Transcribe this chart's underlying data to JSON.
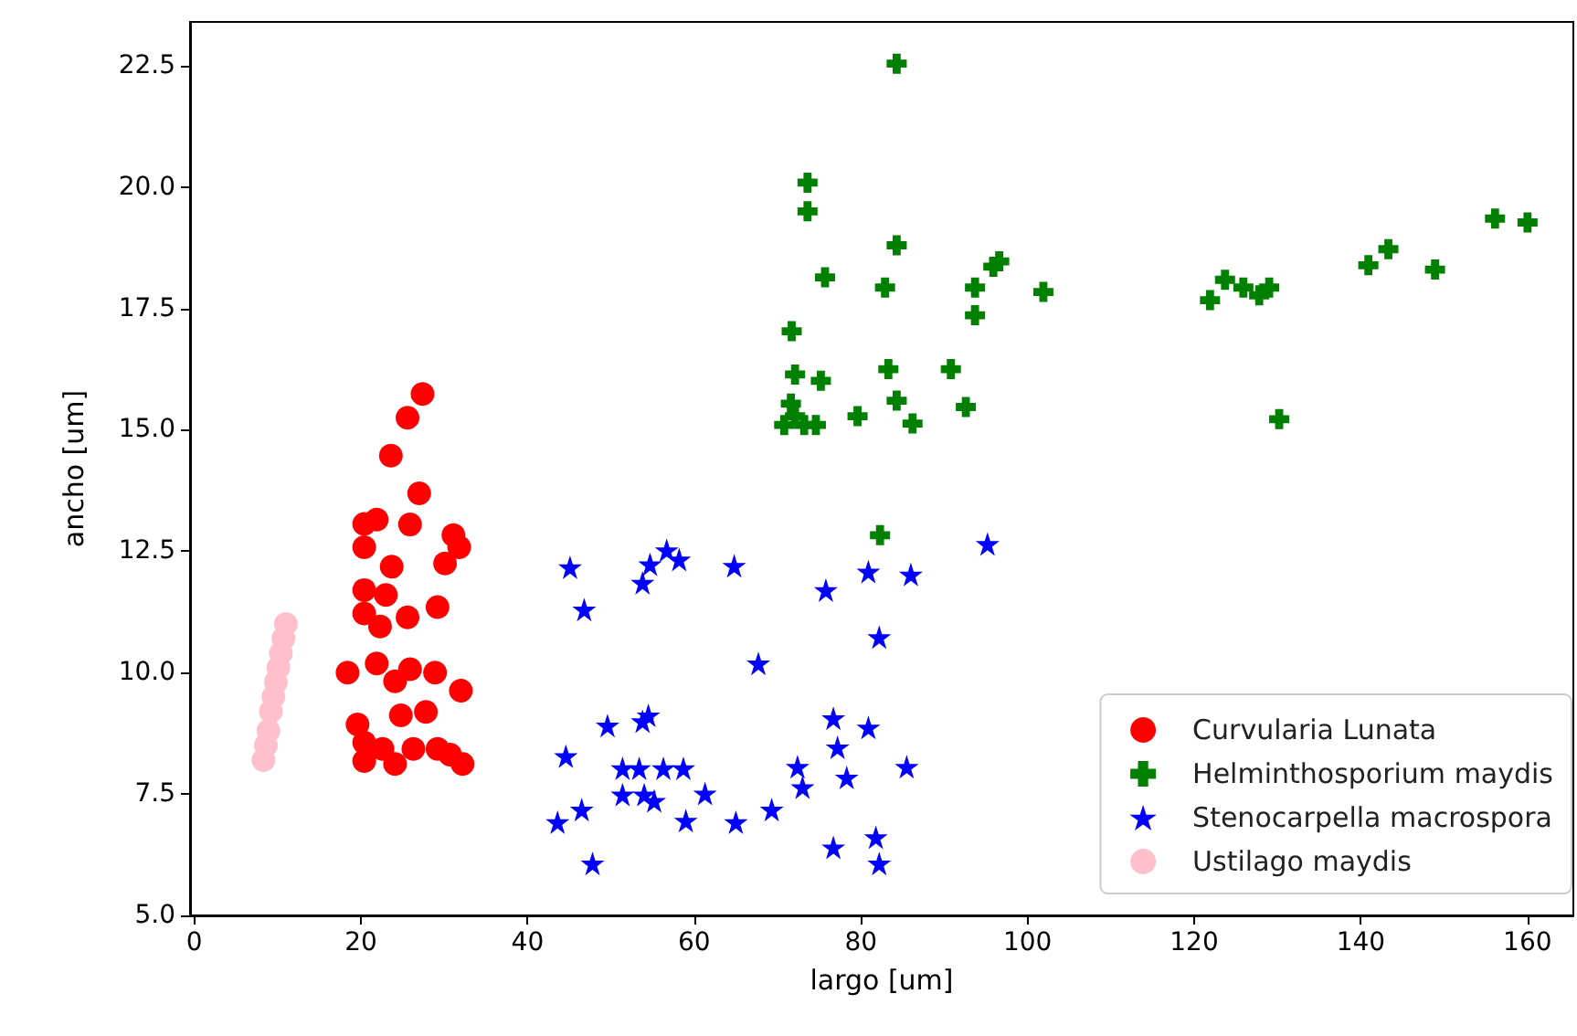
{
  "chart_data": {
    "type": "scatter",
    "xlabel": "largo [um]",
    "ylabel": "ancho [um]",
    "xlim": [
      -0.5,
      165.5
    ],
    "xticks": [
      0,
      20,
      40,
      60,
      80,
      100,
      120,
      140,
      160
    ],
    "ylim": [
      5,
      23.4
    ],
    "yticks": [
      {
        "value": 5,
        "label": "5.0"
      },
      {
        "value": 7.5,
        "label": "7.5"
      },
      {
        "value": 10,
        "label": "10.0"
      },
      {
        "value": 12.5,
        "label": "12.5"
      },
      {
        "value": 15,
        "label": "15.0"
      },
      {
        "value": 17.5,
        "label": "17.5"
      },
      {
        "value": 20,
        "label": "20.0"
      },
      {
        "value": 22.5,
        "label": "22.5"
      }
    ],
    "grid": false,
    "legend": "bottom right",
    "series": [
      {
        "name": "Curvularia Lunata",
        "color": "#ff0000",
        "marker": "circle",
        "x": [
          27.4,
          25.6,
          23.6,
          27.0,
          20.4,
          21.9,
          25.9,
          31.1,
          31.8,
          20.4,
          23.7,
          30.1,
          20.4,
          23.0,
          20.4,
          22.3,
          25.6,
          29.2,
          18.4,
          21.9,
          25.9,
          28.9,
          32.0,
          24.1,
          24.8,
          27.8,
          19.6,
          20.4,
          20.4,
          24.1,
          26.3,
          29.2,
          30.7,
          32.2,
          22.6
        ],
        "values": [
          15.74,
          15.25,
          14.47,
          13.69,
          13.06,
          13.15,
          13.05,
          12.83,
          12.58,
          12.58,
          12.18,
          12.25,
          11.7,
          11.6,
          11.22,
          10.95,
          11.14,
          11.35,
          10.0,
          10.19,
          10.07,
          10.0,
          9.63,
          9.82,
          9.12,
          9.19,
          8.93,
          8.56,
          8.18,
          8.12,
          8.43,
          8.43,
          8.31,
          8.12,
          8.43
        ]
      },
      {
        "name": "Helminthosporium maydis",
        "color": "#008000",
        "marker": "cross",
        "x": [
          84.3,
          73.6,
          73.6,
          84.3,
          76.1,
          75.7,
          82.9,
          93.7,
          95.9,
          96.6,
          101.9,
          93.7,
          71.7,
          72.1,
          75.2,
          83.3,
          90.8,
          71.6,
          72.5,
          84.3,
          92.6,
          79.6,
          86.2,
          70.8,
          73.2,
          74.6,
          72.1,
          82.3,
          121.9,
          123.7,
          125.9,
          127.8,
          129.0,
          130.2,
          140.9,
          143.3,
          148.9,
          156.1,
          160.0
        ],
        "values": [
          22.54,
          20.09,
          19.5,
          18.8,
          null,
          18.14,
          17.93,
          17.93,
          18.36,
          18.47,
          17.84,
          17.36,
          17.03,
          16.14,
          16.01,
          16.25,
          16.25,
          15.54,
          null,
          15.6,
          15.47,
          15.28,
          15.13,
          15.1,
          15.1,
          15.1,
          15.28,
          12.83,
          17.67,
          18.09,
          17.93,
          17.77,
          17.93,
          15.22,
          18.39,
          18.72,
          18.3,
          19.35,
          19.27
        ]
      },
      {
        "name": "Stenocarpella macrospora",
        "color": "#0000ff",
        "marker": "star",
        "x": [
          45.1,
          46.8,
          53.8,
          54.7,
          56.7,
          58.2,
          64.8,
          67.7,
          75.8,
          80.9,
          86.0,
          95.2,
          82.2,
          49.6,
          53.8,
          54.5,
          44.6,
          51.4,
          53.4,
          56.3,
          58.7,
          51.4,
          54.0,
          55.2,
          61.3,
          46.5,
          43.6,
          59.0,
          65.0,
          69.3,
          47.8,
          76.7,
          80.9,
          77.2,
          72.4,
          73.0,
          78.3,
          85.5,
          76.7,
          81.8,
          82.2
        ],
        "values": [
          12.17,
          11.3,
          11.85,
          12.23,
          12.52,
          12.33,
          12.2,
          10.19,
          11.7,
          12.08,
          12.02,
          12.65,
          10.73,
          8.91,
          9.0,
          9.12,
          8.28,
          8.03,
          8.03,
          8.03,
          8.03,
          7.49,
          7.49,
          7.36,
          7.51,
          7.18,
          6.92,
          6.95,
          6.92,
          7.18,
          6.07,
          9.06,
          8.87,
          8.46,
          8.06,
          7.64,
          7.84,
          8.06,
          6.4,
          6.61,
          6.07
        ]
      },
      {
        "name": "Ustilago maydis",
        "color": "#ffc0cb",
        "marker": "circle",
        "x": [
          8.3,
          8.6,
          8.9,
          9.2,
          9.5,
          9.8,
          10.1,
          10.4,
          10.7,
          11.0
        ],
        "values": [
          8.2,
          8.5,
          8.8,
          9.2,
          9.5,
          9.8,
          10.1,
          10.4,
          10.7,
          11.0
        ]
      }
    ]
  }
}
